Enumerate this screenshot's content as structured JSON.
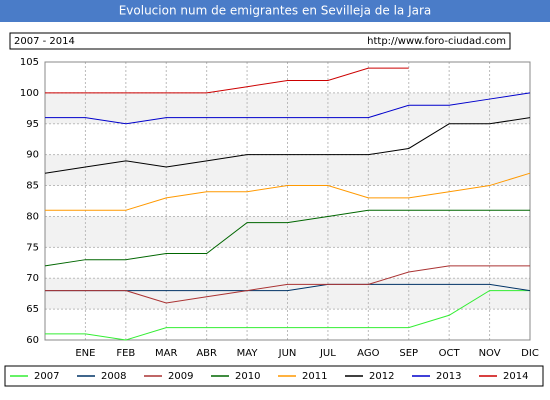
{
  "chart_data": {
    "type": "line",
    "title": "Evolucion num de emigrantes en Sevilleja de la Jara",
    "subtitle": "2007 - 2014",
    "source": "http://www.foro-ciudad.com",
    "categories": [
      null,
      "ENE",
      "FEB",
      "MAR",
      "ABR",
      "MAY",
      "JUN",
      "JUL",
      "AGO",
      "SEP",
      "OCT",
      "NOV",
      "DIC"
    ],
    "ylim": [
      60,
      105
    ],
    "yticks": [
      60,
      65,
      70,
      75,
      80,
      85,
      90,
      95,
      100,
      105
    ],
    "grid": true,
    "series": [
      {
        "name": "2007",
        "color": "#33ee33",
        "values": [
          61,
          61,
          60,
          62,
          62,
          62,
          62,
          62,
          62,
          62,
          64,
          68,
          68
        ]
      },
      {
        "name": "2008",
        "color": "#003366",
        "values": [
          68,
          68,
          68,
          68,
          68,
          68,
          68,
          69,
          69,
          69,
          69,
          69,
          68
        ]
      },
      {
        "name": "2009",
        "color": "#aa3333",
        "values": [
          68,
          68,
          68,
          66,
          67,
          68,
          69,
          69,
          69,
          71,
          72,
          72,
          72
        ]
      },
      {
        "name": "2010",
        "color": "#006600",
        "values": [
          72,
          73,
          73,
          74,
          74,
          79,
          79,
          80,
          81,
          81,
          81,
          81,
          81
        ]
      },
      {
        "name": "2011",
        "color": "#ff9900",
        "values": [
          81,
          81,
          81,
          83,
          84,
          84,
          85,
          85,
          83,
          83,
          84,
          85,
          87
        ]
      },
      {
        "name": "2012",
        "color": "#000000",
        "values": [
          87,
          88,
          89,
          88,
          89,
          90,
          90,
          90,
          90,
          91,
          95,
          95,
          96
        ]
      },
      {
        "name": "2013",
        "color": "#0000cc",
        "values": [
          96,
          96,
          95,
          96,
          96,
          96,
          96,
          96,
          96,
          98,
          98,
          99,
          100
        ]
      },
      {
        "name": "2014",
        "color": "#cc0000",
        "values": [
          100,
          100,
          100,
          100,
          100,
          101,
          102,
          102,
          104,
          104,
          null,
          null,
          null
        ]
      }
    ]
  }
}
